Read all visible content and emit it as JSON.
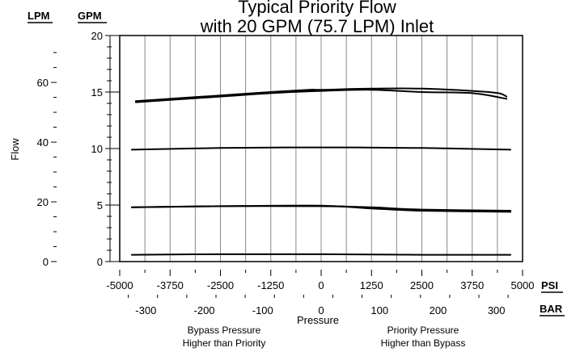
{
  "chart_data": {
    "type": "line",
    "title_line1": "Typical Priority Flow",
    "title_line2": "with 20 GPM (75.7 LPM) Inlet",
    "ylabel": "Flow",
    "xlabel": "Pressure",
    "units": {
      "lpm": "LPM",
      "gpm": "GPM",
      "psi": "PSI",
      "bar": "BAR"
    },
    "gpm_axis": {
      "range": [
        0,
        20
      ],
      "ticks": [
        "0",
        "5",
        "10",
        "15",
        "20"
      ]
    },
    "lpm_axis": {
      "ticks": [
        "0",
        "20",
        "40",
        "60"
      ]
    },
    "psi_axis": {
      "range": [
        -5000,
        5000
      ],
      "ticks": [
        "-5000",
        "-3750",
        "-2500",
        "-1250",
        "0",
        "1250",
        "2500",
        "3750",
        "5000"
      ]
    },
    "bar_axis": {
      "ticks": [
        "-300",
        "-200",
        "-100",
        "0",
        "100",
        "200",
        "300"
      ]
    },
    "grid": true,
    "notes": {
      "left_line1": "Bypass Pressure",
      "left_line2": "Higher than Priority",
      "right_line1": "Priority Pressure",
      "right_line2": "Higher than Bypass"
    },
    "series": [
      {
        "x": [
          -4600,
          -3750,
          -2500,
          -1250,
          -300,
          0,
          1250,
          2500,
          3750,
          4400,
          4600
        ],
        "y": [
          14.2,
          14.4,
          14.7,
          15.0,
          15.2,
          15.2,
          15.3,
          15.3,
          15.1,
          14.9,
          14.6
        ]
      },
      {
        "x": [
          -4600,
          -2500,
          -1250,
          0,
          1250,
          2500,
          3750,
          4600
        ],
        "y": [
          14.1,
          14.6,
          14.9,
          15.1,
          15.2,
          15.0,
          14.9,
          14.4
        ]
      },
      {
        "x": [
          -4700,
          -2500,
          0,
          2500,
          4700
        ],
        "y": [
          9.9,
          10.05,
          10.1,
          10.05,
          9.9
        ]
      },
      {
        "x": [
          -4700,
          -2500,
          0,
          1250,
          2500,
          4700
        ],
        "y": [
          4.8,
          4.9,
          4.9,
          4.8,
          4.6,
          4.5
        ]
      },
      {
        "x": [
          -4700,
          -2500,
          0,
          1250,
          2500,
          4700
        ],
        "y": [
          4.8,
          4.9,
          4.95,
          4.7,
          4.5,
          4.4
        ]
      },
      {
        "x": [
          -4700,
          -2500,
          0,
          2500,
          4700
        ],
        "y": [
          0.6,
          0.65,
          0.65,
          0.6,
          0.6
        ]
      }
    ]
  }
}
